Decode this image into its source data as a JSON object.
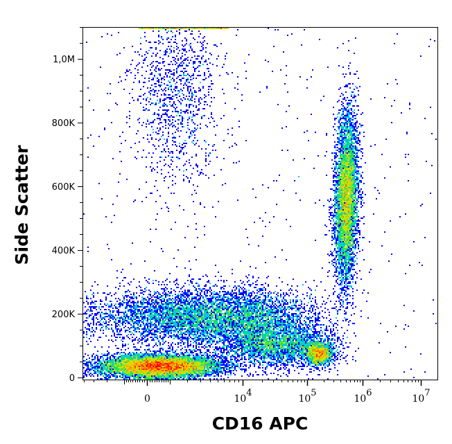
{
  "chart_data": {
    "type": "scatter",
    "subtype": "flow-cytometry-density-dot-plot",
    "xlabel": "CD16 APC",
    "ylabel": "Side Scatter",
    "x_scale": "biexponential",
    "y_scale": "linear",
    "xlim": [
      -4200,
      10000000
    ],
    "ylim": [
      -7000,
      1100000
    ],
    "x_ticks": [
      {
        "value": 0,
        "label": "0",
        "sup": ""
      },
      {
        "value": 10000,
        "label": "10",
        "sup": "4"
      },
      {
        "value": 100000,
        "label": "10",
        "sup": "5"
      },
      {
        "value": 1000000,
        "label": "10",
        "sup": "6"
      },
      {
        "value": 10000000,
        "label": "10",
        "sup": "7"
      }
    ],
    "y_ticks": [
      {
        "value": 0,
        "label": "0"
      },
      {
        "value": 200000,
        "label": "200K"
      },
      {
        "value": 400000,
        "label": "400K"
      },
      {
        "value": 600000,
        "label": "600K"
      },
      {
        "value": 800000,
        "label": "800K"
      },
      {
        "value": 1000000,
        "label": "1,0M"
      }
    ],
    "grid": false,
    "colormap": [
      "#0000ff",
      "#00c8ff",
      "#00e060",
      "#c8f000",
      "#ffb000",
      "#ff0000"
    ],
    "populations": [
      {
        "x_center": 520,
        "x_spread_decades": 0.35,
        "y_center": 35000,
        "y_sd": 18000,
        "relative_events": 9000
      },
      {
        "x_center": 3900,
        "x_spread_decades": 0.7,
        "y_center": 190000,
        "y_sd": 45000,
        "relative_events": 7000
      },
      {
        "x_center": 34500,
        "x_spread_decades": 0.45,
        "y_center": 100000,
        "y_sd": 35000,
        "relative_events": 3000
      },
      {
        "x_center": 165000,
        "x_spread_decades": 0.12,
        "y_center": 75000,
        "y_sd": 18000,
        "relative_events": 1500
      },
      {
        "x_center": 513000,
        "x_spread_decades": 0.1,
        "y_center": 560000,
        "y_sd": 130000,
        "relative_events": 6000
      },
      {
        "x_center": 1350,
        "x_spread_decades": 0.25,
        "y_center": 900000,
        "y_sd": 150000,
        "relative_events": 1200
      }
    ]
  }
}
